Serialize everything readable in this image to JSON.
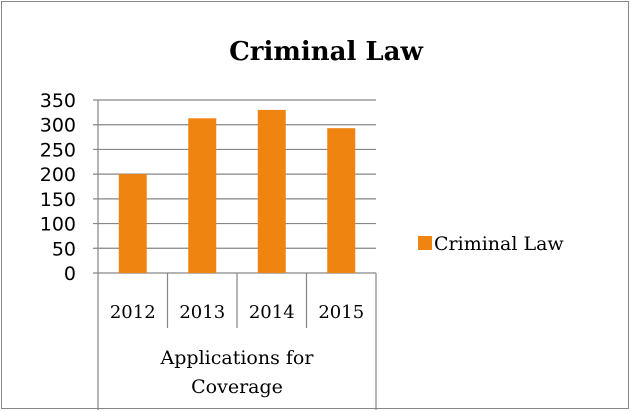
{
  "chart_data": {
    "type": "bar",
    "title": "Criminal Law",
    "categories": [
      "2012",
      "2013",
      "2014",
      "2015"
    ],
    "group_label_lines": [
      "Applications for",
      "Coverage"
    ],
    "series": [
      {
        "name": "Criminal Law",
        "values": [
          200,
          313,
          330,
          293
        ],
        "color": "#F08410"
      }
    ],
    "y_ticks": [
      "0",
      "50",
      "100",
      "150",
      "200",
      "250",
      "300",
      "350"
    ],
    "ylim": [
      0,
      350
    ],
    "grid": true,
    "legend_position": "right",
    "colors": {
      "frame": "#868686",
      "grid": "#868686",
      "bar": "#F08410"
    }
  }
}
